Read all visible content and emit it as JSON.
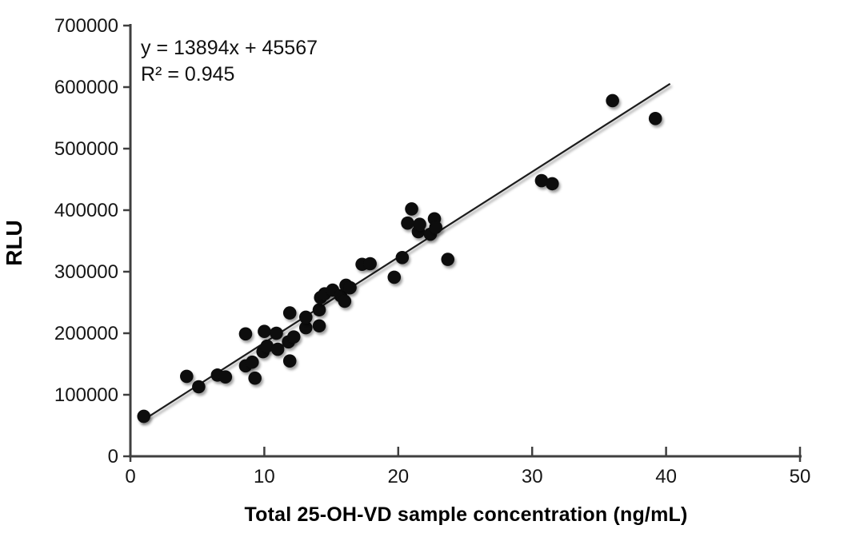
{
  "figure": {
    "background_color": "#ffffff",
    "dot_color": "#0b0b0b",
    "axis_color": "#3f3f3f",
    "trendline_color": "#1f1f1f",
    "text_color": "#161616"
  },
  "chart_data": {
    "type": "scatter",
    "title": "",
    "xlabel": "Total 25-OH-VD sample concentration (ng/mL)",
    "ylabel": "RLU",
    "xlim": [
      0,
      50
    ],
    "ylim": [
      0,
      700000
    ],
    "xticks": [
      0,
      10,
      20,
      30,
      40,
      50
    ],
    "yticks": [
      0,
      100000,
      200000,
      300000,
      400000,
      500000,
      600000,
      700000
    ],
    "grid": false,
    "legend": "none",
    "annotation": {
      "equation": "y = 13894x + 45567",
      "r_squared": "R² = 0.945"
    },
    "trendline": {
      "slope": 13894,
      "intercept": 45567,
      "x_start": 0.75,
      "x_end": 40.3
    },
    "points": [
      [
        1.0,
        65000
      ],
      [
        4.2,
        130000
      ],
      [
        5.1,
        113000
      ],
      [
        6.5,
        132000
      ],
      [
        7.1,
        129000
      ],
      [
        8.6,
        147000
      ],
      [
        8.6,
        199000
      ],
      [
        9.1,
        153000
      ],
      [
        9.3,
        127000
      ],
      [
        9.9,
        170000
      ],
      [
        10.0,
        203000
      ],
      [
        10.2,
        179000
      ],
      [
        10.9,
        200000
      ],
      [
        11.0,
        174000
      ],
      [
        11.8,
        186000
      ],
      [
        11.9,
        155000
      ],
      [
        11.9,
        233000
      ],
      [
        12.2,
        194000
      ],
      [
        13.1,
        209000
      ],
      [
        13.1,
        226000
      ],
      [
        14.1,
        212000
      ],
      [
        14.1,
        238000
      ],
      [
        14.2,
        258000
      ],
      [
        14.5,
        264000
      ],
      [
        15.1,
        270000
      ],
      [
        15.7,
        261000
      ],
      [
        16.0,
        252000
      ],
      [
        16.1,
        278000
      ],
      [
        16.4,
        274000
      ],
      [
        17.3,
        312000
      ],
      [
        17.9,
        313000
      ],
      [
        19.7,
        291000
      ],
      [
        20.3,
        323000
      ],
      [
        20.7,
        379000
      ],
      [
        21.0,
        402000
      ],
      [
        21.5,
        365000
      ],
      [
        21.6,
        377000
      ],
      [
        22.4,
        361000
      ],
      [
        22.7,
        386000
      ],
      [
        22.8,
        372000
      ],
      [
        23.7,
        320000
      ],
      [
        30.7,
        448000
      ],
      [
        31.5,
        443000
      ],
      [
        36.0,
        578000
      ],
      [
        39.2,
        549000
      ]
    ]
  }
}
